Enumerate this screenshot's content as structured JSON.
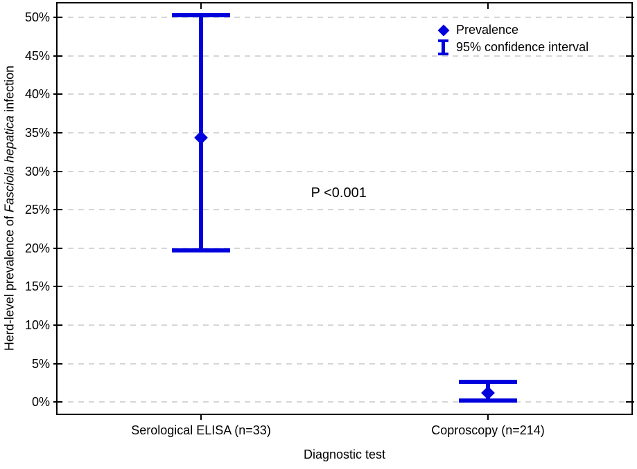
{
  "chart_data": {
    "type": "scatter",
    "title": "",
    "xlabel": "Diagnostic test",
    "ylabel": "Herd-level prevalence of Fasciola hepatica infection",
    "ylabel_parts": {
      "prefix": "Herd-level prevalence of ",
      "italic": "Fasciola hepatica",
      "suffix": " infection"
    },
    "categories": [
      "Serological ELISA (n=33)",
      "Coproscopy (n=214)"
    ],
    "series": [
      {
        "name": "Prevalence",
        "marker": "diamond",
        "values": [
          34.4,
          1.2
        ]
      },
      {
        "name": "95% confidence interval",
        "ci_low": [
          19.7,
          0.2
        ],
        "ci_high": [
          50.3,
          2.6
        ]
      }
    ],
    "yticks": [
      0,
      5,
      10,
      15,
      20,
      25,
      30,
      35,
      40,
      45,
      50
    ],
    "ytick_labels": [
      "0%",
      "5%",
      "10%",
      "15%",
      "20%",
      "25%",
      "30%",
      "35%",
      "40%",
      "45%",
      "50%"
    ],
    "ylim": [
      -1.5,
      51.8
    ],
    "grid": "dashed-horizontal",
    "legend_position": "top-right",
    "annotation": {
      "text": "P <0.001",
      "x_frac": 0.49,
      "y_value": 27.0
    }
  },
  "legend": {
    "items": [
      {
        "icon": "diamond-marker",
        "label": "Prevalence"
      },
      {
        "icon": "error-bar",
        "label": "95% confidence interval"
      }
    ]
  },
  "colors": {
    "series": "#0000dd",
    "grid": "#d6d6d6",
    "axis": "#000000",
    "text": "#000000",
    "background": "#ffffff"
  }
}
